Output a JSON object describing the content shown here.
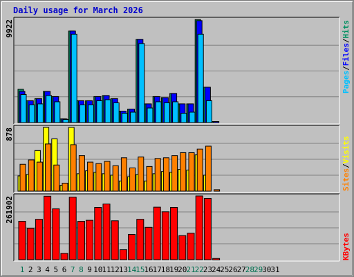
{
  "header": {
    "title": "Daily usage for March 2026"
  },
  "colors": {
    "hits": "#009060",
    "files": "#0000ff",
    "pages": "#00c0ff",
    "visits": "#ffff00",
    "sites": "#ff8000",
    "kbytes": "#ff0000",
    "weekend_label": "#007050",
    "weekday_label": "#000000"
  },
  "chart_data": [
    {
      "type": "bar",
      "panel": "hits-files-pages",
      "ytick_label": "9922",
      "ylim": [
        0,
        9922
      ],
      "categories": [
        "1",
        "2",
        "3",
        "4",
        "5",
        "6",
        "7",
        "8",
        "9",
        "10",
        "11",
        "12",
        "13",
        "14",
        "15",
        "16",
        "17",
        "18",
        "19",
        "20",
        "21",
        "22",
        "23",
        "24",
        "25",
        "26",
        "27",
        "28",
        "29",
        "30",
        "31"
      ],
      "weekend_days": [
        "1",
        "7",
        "8",
        "14",
        "15",
        "21",
        "22",
        "28",
        "29"
      ],
      "series": [
        {
          "name": "Hits",
          "values": [
            3200,
            2100,
            2300,
            3000,
            2500,
            350,
            8800,
            2100,
            2100,
            2500,
            2600,
            2300,
            1100,
            1300,
            8000,
            1800,
            2500,
            2400,
            2800,
            1800,
            1800,
            9900,
            3400,
            100,
            0,
            0,
            0,
            0,
            0,
            0,
            0
          ]
        },
        {
          "name": "Files",
          "values": [
            3000,
            2100,
            2300,
            3000,
            2500,
            350,
            8800,
            2100,
            2100,
            2500,
            2600,
            2300,
            1100,
            1300,
            8000,
            1800,
            2500,
            2400,
            2800,
            1800,
            1800,
            9800,
            3400,
            100,
            0,
            0,
            0,
            0,
            0,
            0,
            0
          ]
        },
        {
          "name": "Pages",
          "values": [
            2700,
            1700,
            1800,
            2600,
            2000,
            300,
            8500,
            1700,
            1700,
            2100,
            2200,
            1900,
            900,
            1000,
            7600,
            1400,
            2000,
            1900,
            2000,
            900,
            1000,
            8500,
            2100,
            0,
            0,
            0,
            0,
            0,
            0,
            0,
            0
          ]
        }
      ],
      "legend_labels": [
        "Pages",
        "/",
        "Files",
        "/",
        "Hits"
      ]
    },
    {
      "type": "bar",
      "panel": "visits-sites",
      "ytick_label": "878",
      "ylim": [
        0,
        878
      ],
      "categories": [
        "1",
        "2",
        "3",
        "4",
        "5",
        "6",
        "7",
        "8",
        "9",
        "10",
        "11",
        "12",
        "13",
        "14",
        "15",
        "16",
        "17",
        "18",
        "19",
        "20",
        "21",
        "22",
        "23",
        "24",
        "25",
        "26",
        "27",
        "28",
        "29",
        "30",
        "31"
      ],
      "series": [
        {
          "name": "Visits",
          "values": [
            210,
            230,
            560,
            878,
            720,
            80,
            878,
            240,
            280,
            260,
            240,
            220,
            140,
            200,
            230,
            140,
            240,
            270,
            260,
            300,
            290,
            500,
            220,
            0,
            0,
            0,
            0,
            0,
            0,
            0,
            0
          ]
        },
        {
          "name": "Sites",
          "values": [
            370,
            430,
            400,
            650,
            360,
            110,
            640,
            490,
            400,
            380,
            410,
            350,
            460,
            320,
            470,
            340,
            450,
            460,
            490,
            530,
            530,
            580,
            620,
            20,
            0,
            0,
            0,
            0,
            0,
            0,
            0
          ]
        }
      ],
      "legend_labels": [
        "Sites",
        "/",
        "Visits"
      ]
    },
    {
      "type": "bar",
      "panel": "kbytes",
      "ytick_label": "261902",
      "ylim": [
        0,
        261902
      ],
      "categories": [
        "1",
        "2",
        "3",
        "4",
        "5",
        "6",
        "7",
        "8",
        "9",
        "10",
        "11",
        "12",
        "13",
        "14",
        "15",
        "16",
        "17",
        "18",
        "19",
        "20",
        "21",
        "22",
        "23",
        "24",
        "25",
        "26",
        "27",
        "28",
        "29",
        "30",
        "31"
      ],
      "series": [
        {
          "name": "KBytes",
          "values": [
            158000,
            129000,
            166000,
            261000,
            209000,
            26000,
            257000,
            158000,
            162000,
            215000,
            229000,
            160000,
            41000,
            104000,
            166000,
            133000,
            216000,
            197000,
            215000,
            99000,
            109000,
            262000,
            252000,
            5000,
            0,
            0,
            0,
            0,
            0,
            0,
            0
          ]
        }
      ],
      "legend_labels": [
        "KBytes"
      ]
    }
  ]
}
